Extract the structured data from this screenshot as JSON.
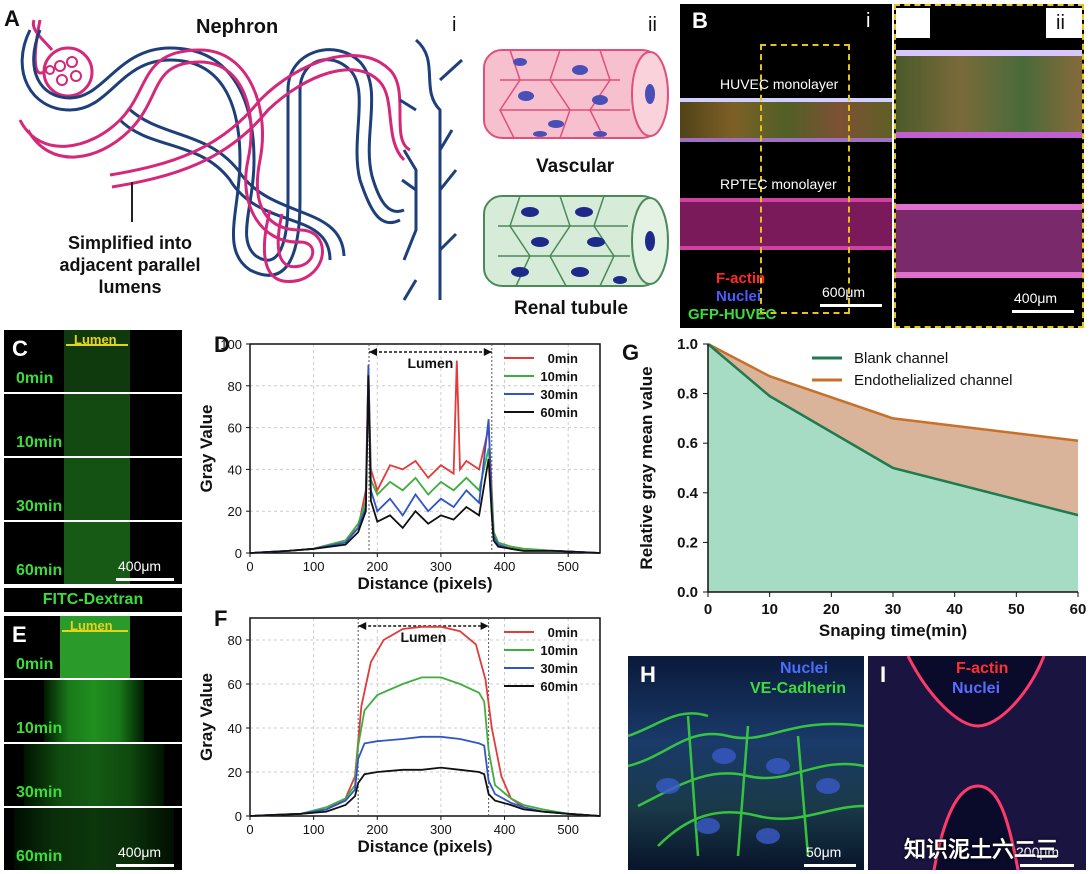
{
  "panelA": {
    "letter": "A",
    "nephron_title": "Nephron",
    "sub_i": "i",
    "sub_ii": "ii",
    "vascular_label": "Vascular",
    "renal_label": "Renal tubule",
    "simplified_label": [
      "Simplified into",
      "adjacent parallel",
      "lumens"
    ]
  },
  "panelB": {
    "letter": "B",
    "sub_i": "i",
    "sub_ii": "ii",
    "huvec_label": "HUVEC monolayer",
    "rptec_label": "RPTEC monolayer",
    "legend": [
      "F-actin",
      "Nuclei",
      "GFP-HUVEC"
    ],
    "legend_colors": [
      "#ff2a2a",
      "#4a5cff",
      "#3ddc3d"
    ],
    "scale_i": "600μm",
    "scale_ii": "400μm"
  },
  "panelC": {
    "letter": "C",
    "lumen_label": "Lumen",
    "frames": [
      "0min",
      "10min",
      "30min",
      "60min"
    ],
    "scale": "400μm"
  },
  "fitc_label": "FITC-Dextran",
  "panelE": {
    "letter": "E",
    "lumen_label": "Lumen",
    "frames": [
      "0min",
      "10min",
      "30min",
      "60min"
    ],
    "scale": "400μm"
  },
  "panelH": {
    "letter": "H",
    "legend": [
      "Nuclei",
      "VE-Cadherin"
    ],
    "legend_colors": [
      "#4a6cff",
      "#3ddc3d"
    ],
    "scale": "50μm"
  },
  "panelI": {
    "letter": "I",
    "legend": [
      "F-actin",
      "Nuclei"
    ],
    "legend_colors": [
      "#ff3030",
      "#5a6cff"
    ],
    "scale": "200μm"
  },
  "watermark": "知识泥土六二三",
  "chart_data": [
    {
      "panel": "D",
      "type": "line",
      "xlabel": "Distance (pixels)",
      "ylabel": "Gray Value",
      "xlim": [
        0,
        550
      ],
      "ylim": [
        0,
        100
      ],
      "xticks": [
        0,
        100,
        200,
        300,
        400,
        500
      ],
      "yticks": [
        0,
        20,
        40,
        60,
        80,
        100
      ],
      "annotation": "Lumen",
      "lumen_range": [
        187,
        380
      ],
      "grid": true,
      "legend_position": "top-right",
      "series": [
        {
          "name": "0min",
          "color": "#e23b3b",
          "x": [
            0,
            60,
            100,
            150,
            170,
            182,
            186,
            190,
            200,
            220,
            240,
            260,
            280,
            300,
            320,
            325,
            330,
            340,
            360,
            375,
            380,
            383,
            390,
            410,
            430,
            480,
            550
          ],
          "y": [
            0,
            1,
            2,
            6,
            12,
            30,
            88,
            40,
            30,
            42,
            40,
            44,
            36,
            42,
            38,
            92,
            40,
            44,
            40,
            60,
            30,
            10,
            5,
            3,
            2,
            1,
            0
          ]
        },
        {
          "name": "10min",
          "color": "#3fae3f",
          "x": [
            0,
            60,
            100,
            150,
            170,
            182,
            186,
            190,
            200,
            220,
            240,
            260,
            280,
            300,
            320,
            340,
            360,
            375,
            380,
            383,
            390,
            410,
            430,
            480,
            550
          ],
          "y": [
            0,
            1,
            2,
            6,
            14,
            25,
            80,
            35,
            28,
            34,
            30,
            36,
            28,
            34,
            30,
            36,
            30,
            50,
            28,
            10,
            5,
            3,
            2,
            1,
            0
          ]
        },
        {
          "name": "30min",
          "color": "#2f55c8",
          "x": [
            0,
            60,
            100,
            150,
            170,
            182,
            186,
            190,
            200,
            220,
            240,
            260,
            280,
            300,
            320,
            340,
            360,
            375,
            380,
            383,
            390,
            410,
            430,
            480,
            550
          ],
          "y": [
            0,
            1,
            2,
            5,
            12,
            22,
            90,
            30,
            20,
            26,
            18,
            28,
            20,
            26,
            22,
            30,
            24,
            64,
            22,
            8,
            4,
            2,
            1,
            1,
            0
          ]
        },
        {
          "name": "60min",
          "color": "#111111",
          "x": [
            0,
            60,
            100,
            150,
            170,
            182,
            186,
            190,
            200,
            220,
            240,
            260,
            280,
            300,
            320,
            340,
            360,
            375,
            380,
            383,
            390,
            410,
            430,
            480,
            550
          ],
          "y": [
            0,
            1,
            2,
            4,
            10,
            20,
            85,
            25,
            15,
            18,
            12,
            20,
            14,
            18,
            16,
            22,
            18,
            45,
            18,
            6,
            3,
            2,
            1,
            1,
            0
          ]
        }
      ]
    },
    {
      "panel": "F",
      "type": "line",
      "xlabel": "Distance (pixels)",
      "ylabel": "Gray Value",
      "xlim": [
        0,
        550
      ],
      "ylim": [
        0,
        90
      ],
      "xticks": [
        0,
        100,
        200,
        300,
        400,
        500
      ],
      "yticks": [
        0,
        20,
        40,
        60,
        80
      ],
      "annotation": "Lumen",
      "lumen_range": [
        170,
        375
      ],
      "grid": true,
      "legend_position": "top-right",
      "series": [
        {
          "name": "0min",
          "color": "#e23b3b",
          "x": [
            0,
            80,
            120,
            150,
            165,
            175,
            190,
            210,
            240,
            270,
            300,
            330,
            355,
            370,
            380,
            395,
            410,
            430,
            460,
            500,
            550
          ],
          "y": [
            0,
            1,
            3,
            8,
            18,
            50,
            70,
            80,
            85,
            86,
            86,
            84,
            78,
            62,
            40,
            18,
            8,
            4,
            2,
            1,
            0
          ]
        },
        {
          "name": "10min",
          "color": "#3fae3f",
          "x": [
            0,
            80,
            120,
            150,
            165,
            170,
            180,
            200,
            240,
            270,
            300,
            330,
            360,
            368,
            375,
            385,
            410,
            430,
            460,
            500,
            550
          ],
          "y": [
            0,
            1,
            4,
            8,
            14,
            32,
            48,
            55,
            60,
            63,
            63,
            60,
            56,
            52,
            30,
            14,
            8,
            5,
            3,
            1,
            0
          ]
        },
        {
          "name": "30min",
          "color": "#2f55c8",
          "x": [
            0,
            80,
            120,
            150,
            165,
            170,
            180,
            200,
            240,
            270,
            300,
            330,
            360,
            368,
            375,
            385,
            410,
            430,
            460,
            500,
            550
          ],
          "y": [
            0,
            1,
            3,
            7,
            12,
            26,
            33,
            34,
            35,
            36,
            36,
            35,
            33,
            32,
            16,
            10,
            6,
            4,
            2,
            1,
            0
          ]
        },
        {
          "name": "60min",
          "color": "#111111",
          "x": [
            0,
            80,
            120,
            150,
            165,
            170,
            180,
            200,
            240,
            270,
            300,
            330,
            360,
            368,
            375,
            385,
            410,
            430,
            460,
            500,
            550
          ],
          "y": [
            0,
            1,
            2,
            5,
            9,
            15,
            19,
            20,
            21,
            21,
            22,
            21,
            20,
            19,
            10,
            7,
            5,
            3,
            2,
            1,
            0
          ]
        }
      ]
    },
    {
      "panel": "G",
      "type": "area",
      "xlabel": "Snaping time(min)",
      "ylabel": "Relative gray mean value",
      "xlim": [
        0,
        60
      ],
      "ylim": [
        0,
        1.0
      ],
      "xticks": [
        0,
        10,
        20,
        30,
        40,
        50,
        60
      ],
      "yticks": [
        0.0,
        0.2,
        0.4,
        0.6,
        0.8,
        1.0
      ],
      "grid": false,
      "legend_position": "top-right",
      "series": [
        {
          "name": "Blank channel",
          "color": "#1f7a4d",
          "fill": "#a6dcc4",
          "x": [
            0,
            10,
            30,
            60
          ],
          "y": [
            1.0,
            0.79,
            0.5,
            0.31
          ]
        },
        {
          "name": "Endothelialized channel",
          "color": "#c8702a",
          "fill": "#d9b49a",
          "x": [
            0,
            10,
            30,
            60
          ],
          "y": [
            1.0,
            0.87,
            0.7,
            0.61
          ]
        }
      ]
    }
  ]
}
